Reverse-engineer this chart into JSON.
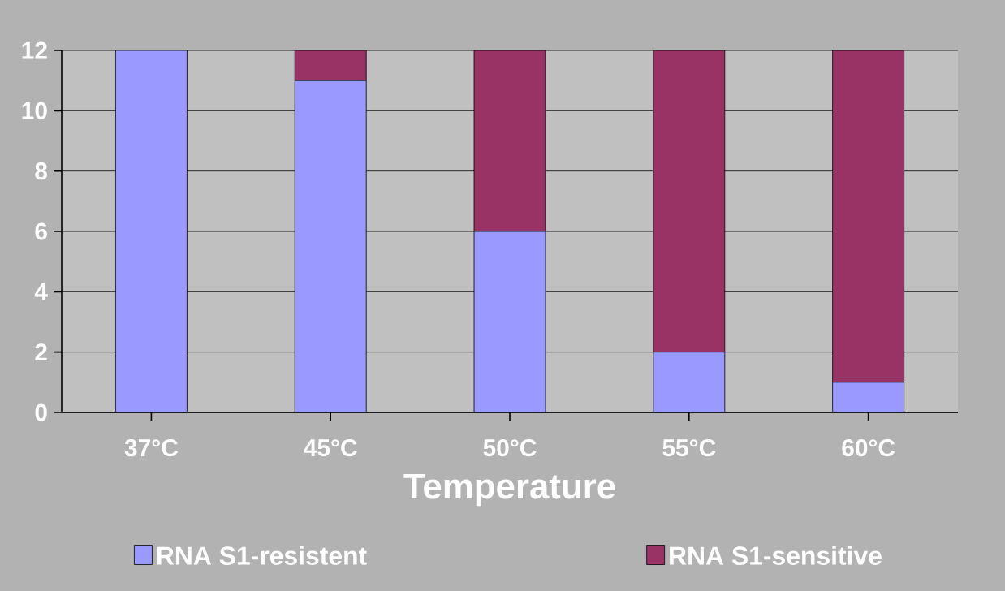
{
  "chart_data": {
    "type": "bar",
    "stacked": true,
    "xlabel": "Temperature",
    "categories": [
      "37°C",
      "45°C",
      "50°C",
      "55°C",
      "60°C"
    ],
    "series": [
      {
        "name": "RNA S1-resistent",
        "color": "#9999ff",
        "values": [
          12,
          11,
          6,
          2,
          1
        ]
      },
      {
        "name": "RNA S1-sensitive",
        "color": "#993366",
        "values": [
          0,
          1,
          6,
          10,
          11
        ]
      }
    ],
    "ylim": [
      0,
      12
    ],
    "yticks": [
      0,
      2,
      4,
      6,
      8,
      10,
      12
    ],
    "grid": "y",
    "legend": "bottom"
  }
}
